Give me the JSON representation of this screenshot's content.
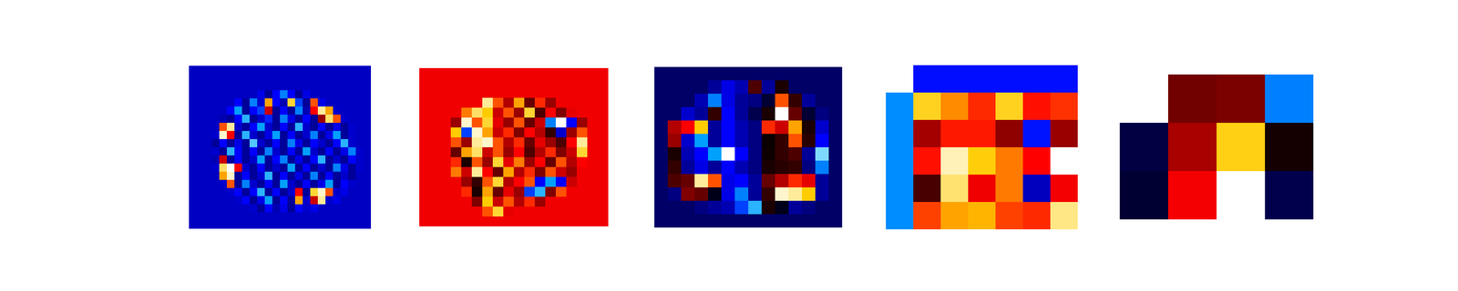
{
  "chart_data": [
    {
      "type": "heatmap",
      "tick_labels": false,
      "color_range": [
        -1,
        1
      ],
      "cells": [
        [
          -0.38,
          -0.38,
          -0.38,
          -0.38,
          -0.38,
          -0.38,
          -0.38,
          -0.38,
          -0.38,
          -0.38,
          -0.38,
          -0.38,
          -0.38,
          -0.38,
          -0.38,
          -0.38,
          -0.38,
          -0.38,
          -0.38,
          -0.38,
          -0.38,
          -0.38,
          -0.38,
          -0.38
        ],
        [
          -0.38,
          -0.38,
          -0.38,
          -0.38,
          -0.38,
          -0.38,
          -0.38,
          -0.38,
          -0.38,
          -0.38,
          -0.38,
          -0.38,
          -0.38,
          -0.38,
          -0.38,
          -0.38,
          -0.38,
          -0.38,
          -0.38,
          -0.38,
          -0.38,
          -0.38,
          -0.38,
          -0.38
        ],
        [
          -0.38,
          -0.38,
          -0.38,
          -0.38,
          -0.38,
          -0.38,
          -0.38,
          -0.38,
          -0.38,
          -0.38,
          -0.38,
          -0.38,
          -0.38,
          -0.38,
          -0.38,
          -0.38,
          -0.38,
          -0.38,
          -0.38,
          -0.38,
          -0.38,
          -0.38,
          -0.38,
          -0.38
        ],
        [
          -0.38,
          -0.38,
          -0.38,
          -0.38,
          -0.38,
          -0.38,
          -0.38,
          -0.38,
          -0.38,
          -0.45,
          -0.3,
          -0.5,
          -0.7,
          -0.5,
          -0.3,
          -0.45,
          -0.38,
          -0.38,
          -0.38,
          -0.38,
          -0.38,
          -0.38,
          -0.38,
          -0.38
        ],
        [
          -0.38,
          -0.38,
          -0.38,
          -0.38,
          -0.38,
          -0.38,
          -0.5,
          -0.3,
          -0.7,
          -0.4,
          0.7,
          -0.5,
          -0.35,
          0.8,
          -0.6,
          -0.3,
          0.6,
          -0.45,
          -0.38,
          -0.38,
          -0.38,
          -0.38,
          -0.38,
          -0.38
        ],
        [
          -0.38,
          -0.38,
          -0.38,
          -0.38,
          -0.38,
          -0.5,
          -0.75,
          -0.3,
          -0.5,
          -0.6,
          0.4,
          -0.3,
          -0.5,
          -0.3,
          -0.7,
          -0.35,
          0.5,
          0.9,
          0.7,
          -0.4,
          -0.38,
          -0.38,
          -0.38,
          -0.38
        ],
        [
          -0.38,
          -0.38,
          -0.38,
          -0.38,
          -0.35,
          -0.3,
          -0.5,
          -0.8,
          -0.3,
          -0.4,
          -0.55,
          -0.3,
          -0.7,
          -0.45,
          -0.3,
          -0.5,
          -0.3,
          0.3,
          0.85,
          0.6,
          -0.4,
          -0.38,
          -0.38,
          -0.38
        ],
        [
          -0.38,
          -0.38,
          -0.38,
          -0.38,
          0.6,
          0.9,
          -0.4,
          -0.3,
          -0.5,
          -0.75,
          -0.4,
          -0.3,
          -0.5,
          -0.3,
          -0.8,
          -0.4,
          -0.3,
          -0.5,
          -0.3,
          -0.45,
          -0.3,
          -0.4,
          -0.38,
          -0.38
        ],
        [
          -0.38,
          -0.38,
          -0.38,
          -0.4,
          0.95,
          0.5,
          -0.3,
          -0.8,
          -0.4,
          -0.3,
          -0.45,
          -0.75,
          -0.3,
          -0.5,
          -0.3,
          -0.4,
          -0.7,
          -0.3,
          -0.45,
          -0.75,
          -0.3,
          -0.4,
          -0.38,
          -0.38
        ],
        [
          -0.38,
          -0.38,
          -0.38,
          -0.3,
          -0.5,
          -0.3,
          -0.45,
          -0.3,
          -0.85,
          -0.4,
          -0.3,
          -0.5,
          -0.3,
          -0.7,
          -0.45,
          -0.3,
          -0.5,
          -0.4,
          -0.3,
          -0.5,
          -0.8,
          -0.4,
          -0.38,
          -0.38
        ],
        [
          -0.38,
          -0.38,
          -0.38,
          -0.4,
          -0.3,
          -0.8,
          -0.5,
          -0.3,
          -0.5,
          -0.3,
          -0.7,
          -0.4,
          -0.3,
          -0.5,
          -0.3,
          -0.75,
          -0.4,
          -0.3,
          -0.5,
          -0.3,
          -0.45,
          -0.7,
          -0.4,
          -0.38
        ],
        [
          -0.38,
          -0.38,
          -0.38,
          -0.35,
          0.4,
          -0.3,
          -0.5,
          -0.3,
          -0.4,
          -0.75,
          -0.3,
          -0.5,
          -0.7,
          -0.3,
          -0.45,
          -0.3,
          -0.5,
          -0.8,
          -0.3,
          -0.4,
          -0.3,
          -0.5,
          -0.4,
          -0.38
        ],
        [
          -0.38,
          -0.38,
          -0.38,
          -0.4,
          0.85,
          1,
          0.5,
          -0.4,
          -0.3,
          -0.5,
          -0.3,
          -0.4,
          -0.3,
          -0.75,
          -0.3,
          -0.5,
          -0.3,
          -0.4,
          -0.3,
          -0.7,
          -0.45,
          -0.3,
          -0.4,
          -0.38
        ],
        [
          -0.38,
          -0.38,
          -0.38,
          -0.38,
          0.7,
          0.95,
          -0.3,
          -0.5,
          -0.3,
          -0.4,
          -0.8,
          -0.3,
          -0.5,
          -0.3,
          -0.45,
          -0.3,
          -0.7,
          -0.3,
          -0.5,
          -0.3,
          -0.4,
          -0.3,
          -0.38,
          -0.38
        ],
        [
          -0.38,
          -0.38,
          -0.38,
          -0.38,
          -0.4,
          0.6,
          -0.3,
          -0.7,
          -0.4,
          -0.3,
          -0.5,
          -0.3,
          -0.75,
          -0.4,
          -0.3,
          -0.5,
          -0.3,
          -0.45,
          -0.75,
          -0.3,
          -0.5,
          -0.4,
          -0.38,
          -0.38
        ],
        [
          -0.38,
          -0.38,
          -0.38,
          -0.38,
          -0.38,
          -0.4,
          -0.5,
          -0.3,
          -0.5,
          -0.8,
          -0.3,
          -0.5,
          -0.3,
          -0.4,
          0.5,
          -0.3,
          0.8,
          0.95,
          0.6,
          -0.4,
          -0.45,
          -0.38,
          -0.38,
          -0.38
        ],
        [
          -0.38,
          -0.38,
          -0.38,
          -0.38,
          -0.38,
          -0.38,
          -0.4,
          -0.5,
          -0.3,
          -0.45,
          -0.75,
          -0.3,
          -0.5,
          -0.3,
          0.7,
          -0.4,
          0.4,
          0.9,
          -0.4,
          -0.45,
          -0.38,
          -0.38,
          -0.38,
          -0.38
        ],
        [
          -0.38,
          -0.38,
          -0.38,
          -0.38,
          -0.38,
          -0.38,
          -0.38,
          -0.38,
          -0.4,
          -0.3,
          -0.5,
          -0.35,
          -0.45,
          -0.3,
          -0.5,
          -0.4,
          -0.45,
          -0.38,
          -0.38,
          -0.38,
          -0.38,
          -0.38,
          -0.38,
          -0.38
        ],
        [
          -0.38,
          -0.38,
          -0.38,
          -0.38,
          -0.38,
          -0.38,
          -0.38,
          -0.38,
          -0.38,
          -0.38,
          -0.38,
          -0.38,
          -0.38,
          -0.38,
          -0.38,
          -0.38,
          -0.38,
          -0.38,
          -0.38,
          -0.38,
          -0.38,
          -0.38,
          -0.38,
          -0.38
        ],
        [
          -0.38,
          -0.38,
          -0.38,
          -0.38,
          -0.38,
          -0.38,
          -0.38,
          -0.38,
          -0.38,
          -0.38,
          -0.38,
          -0.38,
          -0.38,
          -0.38,
          -0.38,
          -0.38,
          -0.38,
          -0.38,
          -0.38,
          -0.38,
          -0.38,
          -0.38,
          -0.38,
          -0.38
        ]
      ]
    },
    {
      "type": "heatmap",
      "tick_labels": false,
      "color_range": [
        -1,
        1
      ],
      "cells": [
        [
          0.47,
          0.47,
          0.47,
          0.47,
          0.47,
          0.47,
          0.47,
          0.47,
          0.47,
          0.47,
          0.47,
          0.47,
          0.47,
          0.47,
          0.47,
          0.47,
          0.47,
          0.47
        ],
        [
          0.47,
          0.47,
          0.47,
          0.47,
          0.47,
          0.47,
          0.47,
          0.47,
          0.47,
          0.47,
          0.47,
          0.47,
          0.47,
          0.47,
          0.47,
          0.47,
          0.47,
          0.47
        ],
        [
          0.47,
          0.47,
          0.47,
          0.47,
          0.47,
          0.47,
          0.47,
          0.47,
          0.47,
          0.47,
          0.47,
          0.47,
          0.47,
          0.47,
          0.47,
          0.47,
          0.47,
          0.47
        ],
        [
          0.47,
          0.47,
          0.47,
          0.47,
          0.47,
          0.47,
          0.9,
          0.6,
          0.35,
          0.7,
          0.2,
          0.55,
          0.3,
          0.47,
          0.47,
          0.47,
          0.47,
          0.47
        ],
        [
          0.47,
          0.47,
          0.47,
          0.47,
          0.65,
          0.85,
          0.75,
          0.4,
          0.6,
          0.3,
          0.8,
          0.15,
          0.5,
          0.25,
          0.45,
          0.47,
          0.47,
          0.47
        ],
        [
          0.47,
          0.47,
          0.47,
          0.3,
          0.95,
          0.6,
          0.8,
          0.45,
          0.3,
          0.6,
          0.2,
          0.4,
          -0.7,
          1,
          -0.5,
          0.3,
          0.47,
          0.47
        ],
        [
          0.47,
          0.47,
          0.47,
          0.75,
          -0.6,
          0.95,
          0.7,
          0.4,
          0.55,
          0.25,
          0.5,
          0.35,
          0.1,
          -0.4,
          0.3,
          0.6,
          0.47,
          0.47
        ],
        [
          0.47,
          0.47,
          0.47,
          0.6,
          0.3,
          0.9,
          0.95,
          0.6,
          0.35,
          0.55,
          0.2,
          0.45,
          0.3,
          0.15,
          0.5,
          0.9,
          0.47,
          0.47
        ],
        [
          0.47,
          0.47,
          0.47,
          0.2,
          0.7,
          0.85,
          0.4,
          0.6,
          0.3,
          0.5,
          0.15,
          0.35,
          0.55,
          0.25,
          0.4,
          0.8,
          0.47,
          0.47
        ],
        [
          0.47,
          0.47,
          0.47,
          0.55,
          0.05,
          0.6,
          0.3,
          0.8,
          0.45,
          0.65,
          0.3,
          0.5,
          0.2,
          0.6,
          0.35,
          0.5,
          0.47,
          0.47
        ],
        [
          0.47,
          0.47,
          0.47,
          0.65,
          0.4,
          0.9,
          0.5,
          0.2,
          0.7,
          0.35,
          0.55,
          0.25,
          0.6,
          0.4,
          0.3,
          0.47,
          0.47,
          0.47
        ],
        [
          0.47,
          0.47,
          0.47,
          0.47,
          0.3,
          0.1,
          0.6,
          0.8,
          0.35,
          0.5,
          0.6,
          -0.5,
          -0.75,
          -0.5,
          0.4,
          0.47,
          0.47,
          0.47
        ],
        [
          0.47,
          0.47,
          0.47,
          0.47,
          0.55,
          0.05,
          0.7,
          0.2,
          0.45,
          0.3,
          -0.6,
          -0.8,
          0.25,
          0.6,
          0.47,
          0.47,
          0.47,
          0.47
        ],
        [
          0.47,
          0.47,
          0.47,
          0.47,
          0.47,
          0.25,
          0.75,
          0.4,
          0.6,
          0.35,
          0.55,
          0.3,
          0.47,
          0.47,
          0.47,
          0.47,
          0.47,
          0.47
        ],
        [
          0.47,
          0.47,
          0.47,
          0.47,
          0.47,
          0.47,
          0.6,
          0.8,
          0.45,
          0.47,
          0.47,
          0.47,
          0.47,
          0.47,
          0.47,
          0.47,
          0.47,
          0.47
        ],
        [
          0.47,
          0.47,
          0.47,
          0.47,
          0.47,
          0.47,
          0.47,
          0.47,
          0.47,
          0.47,
          0.47,
          0.47,
          0.47,
          0.47,
          0.47,
          0.47,
          0.47,
          0.47
        ]
      ]
    },
    {
      "type": "heatmap",
      "tick_labels": false,
      "color_range": [
        -1,
        1
      ],
      "cells": [
        [
          -0.2,
          -0.2,
          -0.2,
          -0.2,
          -0.2,
          -0.2,
          -0.2,
          -0.2,
          -0.2,
          -0.2,
          -0.2,
          -0.2,
          -0.2,
          -0.2
        ],
        [
          -0.2,
          -0.2,
          -0.2,
          -0.2,
          -0.3,
          -0.45,
          -0.35,
          0.15,
          -0.3,
          0.05,
          -0.2,
          -0.2,
          -0.2,
          -0.2
        ],
        [
          -0.2,
          -0.2,
          -0.2,
          -0.35,
          -0.7,
          -0.45,
          -0.3,
          -0.25,
          -0.1,
          0.6,
          0.1,
          -0.3,
          -0.2,
          -0.2
        ],
        [
          -0.2,
          -0.2,
          -0.4,
          -0.3,
          0.1,
          -0.5,
          -0.3,
          -0.15,
          0.05,
          1,
          0.2,
          -0.1,
          -0.25,
          -0.2
        ],
        [
          -0.2,
          0.35,
          0.5,
          0.75,
          -0.3,
          -0.5,
          -0.35,
          -0.25,
          0.55,
          0.4,
          0.7,
          0.05,
          -0.4,
          -0.2
        ],
        [
          -0.2,
          0.3,
          -0.4,
          -0.75,
          -0.3,
          -0.5,
          -0.35,
          -0.25,
          0.02,
          0.1,
          0.6,
          0.08,
          -0.5,
          -0.2
        ],
        [
          -0.2,
          0.05,
          -0.35,
          -0.5,
          -0.75,
          1,
          -0.5,
          -0.25,
          0.03,
          0.1,
          0.15,
          -0.3,
          -0.9,
          -0.2
        ],
        [
          -0.2,
          0.1,
          -0.3,
          -0.45,
          -0.3,
          -0.5,
          -0.35,
          -0.25,
          0.05,
          0.08,
          0.1,
          -0.25,
          -0.7,
          -0.2
        ],
        [
          -0.2,
          0.15,
          0.2,
          0.9,
          0.6,
          -0.45,
          -0.5,
          -0.3,
          0.2,
          0.35,
          0.55,
          0.45,
          -0.3,
          -0.2
        ],
        [
          -0.2,
          -0.25,
          0.25,
          0.2,
          -0.05,
          -0.45,
          -0.7,
          -0.3,
          0.1,
          0.95,
          0.9,
          0.75,
          -0.3,
          -0.2
        ],
        [
          -0.2,
          -0.2,
          -0.2,
          -0.25,
          -0.3,
          -0.35,
          -0.6,
          -0.8,
          0.05,
          -0.05,
          -0.3,
          -0.25,
          -0.2,
          -0.2
        ],
        [
          -0.2,
          -0.2,
          -0.2,
          -0.2,
          -0.2,
          -0.2,
          -0.2,
          -0.2,
          -0.2,
          -0.2,
          -0.2,
          -0.2,
          -0.2,
          -0.2
        ]
      ]
    },
    {
      "type": "heatmap",
      "tick_labels": false,
      "color_range": [
        -1,
        1
      ],
      "cells": [
        [
          null,
          -0.52,
          -0.52,
          -0.52,
          -0.52,
          -0.52,
          -0.52
        ],
        [
          -0.72,
          0.78,
          0.67,
          0.55,
          0.78,
          0.52,
          0.56
        ],
        [
          -0.72,
          0.32,
          0.53,
          0.53,
          0.28,
          -0.53,
          0.3
        ],
        [
          -0.72,
          0.52,
          0.93,
          0.76,
          0.65,
          0.5,
          1
        ],
        [
          -0.72,
          0.14,
          0.86,
          0.47,
          0.65,
          -0.37,
          0.48
        ],
        [
          -0.72,
          0.58,
          0.7,
          0.72,
          0.58,
          0.55,
          0.88
        ]
      ]
    },
    {
      "type": "heatmap",
      "tick_labels": false,
      "color_range": [
        -1,
        1
      ],
      "cells": [
        [
          null,
          0.22,
          0.24,
          -0.7
        ],
        [
          -0.13,
          0.33,
          0.77,
          0.04
        ],
        [
          -0.1,
          0.48,
          1,
          -0.15
        ]
      ]
    }
  ]
}
